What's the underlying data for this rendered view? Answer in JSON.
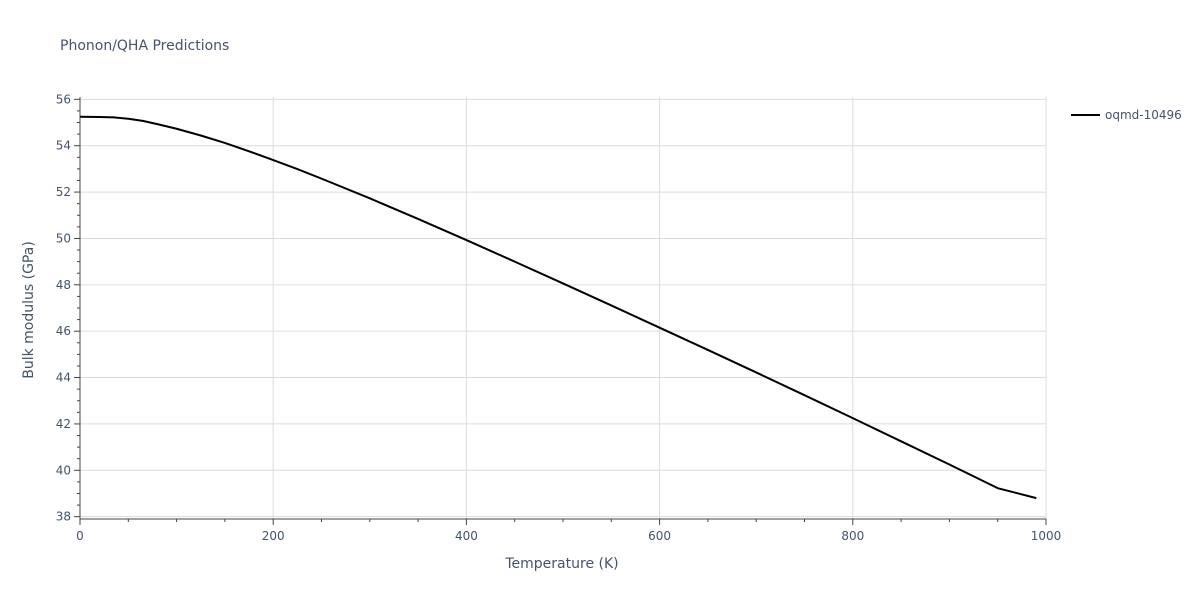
{
  "chart_data": {
    "type": "line",
    "title": "Phonon/QHA Predictions",
    "xlabel": "Temperature (K)",
    "ylabel": "Bulk modulus (GPa)",
    "xlim": [
      0,
      1000
    ],
    "ylim": [
      37.9,
      56.1
    ],
    "x_ticks": [
      0,
      200,
      400,
      600,
      800,
      1000
    ],
    "y_ticks": [
      38,
      40,
      42,
      44,
      46,
      48,
      50,
      52,
      54,
      56
    ],
    "x_minor_step": 50,
    "y_minor_step": 0.5,
    "grid": true,
    "legend_position": "top-right",
    "series": [
      {
        "name": "oqmd-10496",
        "color": "#000000",
        "x": [
          0,
          20,
          35,
          50,
          65,
          80,
          100,
          125,
          150,
          175,
          200,
          225,
          250,
          300,
          350,
          400,
          450,
          500,
          550,
          600,
          650,
          700,
          750,
          800,
          850,
          900,
          950,
          990
        ],
        "y": [
          55.25,
          55.24,
          55.22,
          55.16,
          55.07,
          54.93,
          54.73,
          54.44,
          54.12,
          53.76,
          53.38,
          52.99,
          52.58,
          51.73,
          50.84,
          49.93,
          49.0,
          48.06,
          47.11,
          46.15,
          45.19,
          44.22,
          43.24,
          42.25,
          41.25,
          40.25,
          39.23,
          38.8
        ]
      }
    ]
  }
}
